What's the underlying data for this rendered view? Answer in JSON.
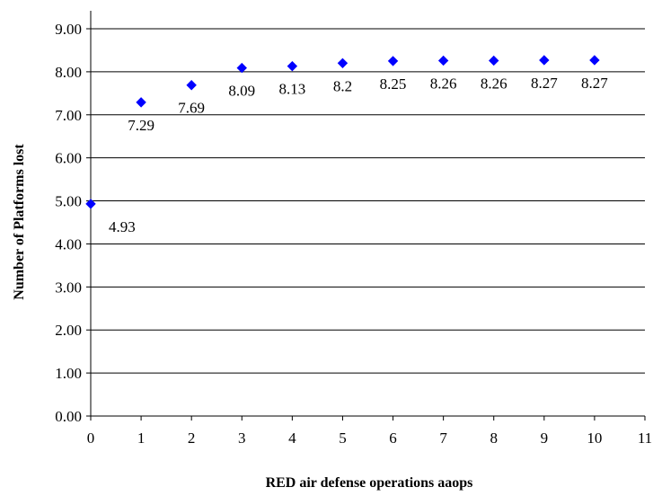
{
  "chart_data": {
    "type": "scatter",
    "xlabel": "RED air defense operations aaops",
    "ylabel": "Number of Platforms lost",
    "xlim": [
      0,
      11
    ],
    "ylim": [
      0,
      9
    ],
    "x_ticks": [
      "0",
      "1",
      "2",
      "3",
      "4",
      "5",
      "6",
      "7",
      "8",
      "9",
      "10",
      "11"
    ],
    "y_ticks": [
      "0.00",
      "1.00",
      "2.00",
      "3.00",
      "4.00",
      "5.00",
      "6.00",
      "7.00",
      "8.00",
      "9.00"
    ],
    "grid": "horizontal",
    "marker": "diamond",
    "marker_color": "#0000FF",
    "series": [
      {
        "x": [
          0,
          1,
          2,
          3,
          4,
          5,
          6,
          7,
          8,
          9,
          10
        ],
        "y": [
          4.93,
          7.29,
          7.69,
          8.09,
          8.13,
          8.2,
          8.25,
          8.26,
          8.26,
          8.27,
          8.27
        ],
        "labels": [
          "4.93",
          "7.29",
          "7.69",
          "8.09",
          "8.13",
          "8.2",
          "8.25",
          "8.26",
          "8.26",
          "8.27",
          "8.27"
        ]
      }
    ]
  }
}
